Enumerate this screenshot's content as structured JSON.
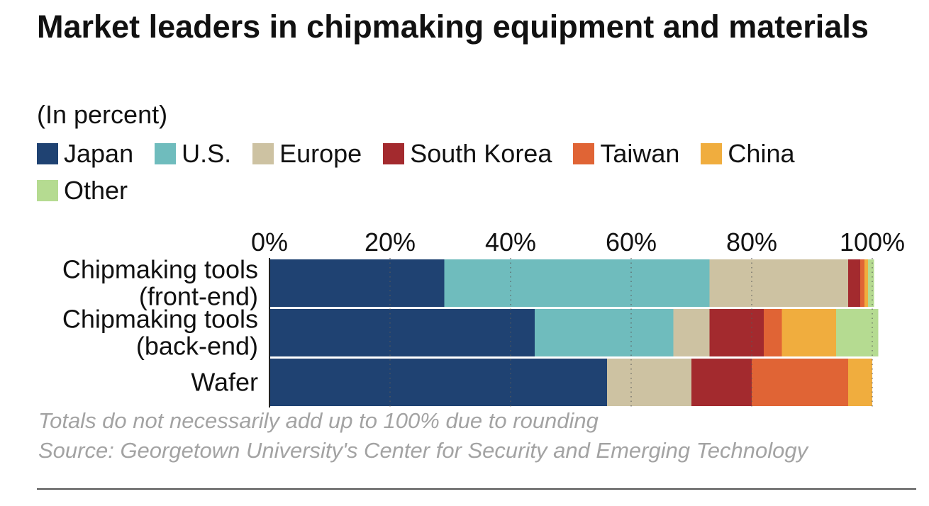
{
  "title": "Market leaders in chipmaking equipment and materials",
  "subtitle": "(In percent)",
  "legend": [
    {
      "label": "Japan",
      "color": "#1f4272"
    },
    {
      "label": "U.S.",
      "color": "#6fbcbd"
    },
    {
      "label": "Europe",
      "color": "#cdc2a2"
    },
    {
      "label": "South Korea",
      "color": "#a32a2e"
    },
    {
      "label": "Taiwan",
      "color": "#e06435"
    },
    {
      "label": "China",
      "color": "#f0ad3e"
    },
    {
      "label": "Other",
      "color": "#b5db91"
    }
  ],
  "notes": {
    "rounding": "Totals do not necessarily add up to 100% due to rounding",
    "source": "Source: Georgetown University's Center for Security and Emerging Technology"
  },
  "chart_data": {
    "type": "stacked-bar-horizontal",
    "title": "Market leaders in chipmaking equipment and materials",
    "subtitle": "(In percent)",
    "categories": [
      [
        "Chipmaking tools",
        "(front-end)"
      ],
      [
        "Chipmaking tools",
        "(back-end)"
      ],
      [
        "Wafer"
      ]
    ],
    "series": [
      {
        "name": "Japan",
        "color": "#1f4272",
        "values": [
          29,
          44,
          56
        ]
      },
      {
        "name": "U.S.",
        "color": "#6fbcbd",
        "values": [
          44,
          23,
          0
        ]
      },
      {
        "name": "Europe",
        "color": "#cdc2a2",
        "values": [
          23,
          6,
          14
        ]
      },
      {
        "name": "South Korea",
        "color": "#a32a2e",
        "values": [
          2,
          9,
          10
        ]
      },
      {
        "name": "Taiwan",
        "color": "#e06435",
        "values": [
          0.7,
          3,
          16
        ]
      },
      {
        "name": "China",
        "color": "#f0ad3e",
        "values": [
          0.6,
          9,
          4
        ]
      },
      {
        "name": "Other",
        "color": "#b5db91",
        "values": [
          1,
          7,
          0
        ]
      }
    ],
    "xlim": [
      0,
      100
    ],
    "xticks": [
      0,
      20,
      40,
      60,
      80,
      100
    ],
    "xtick_labels": [
      "0%",
      "20%",
      "40%",
      "60%",
      "80%",
      "100%"
    ],
    "grid": "vertical-dotted",
    "legend_position": "top"
  }
}
